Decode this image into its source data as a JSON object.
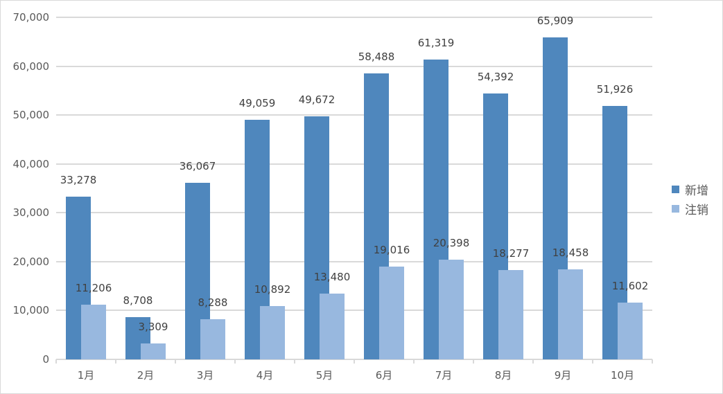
{
  "chart_data": {
    "type": "bar",
    "title": "",
    "xlabel": "",
    "ylabel": "",
    "categories": [
      "1月",
      "2月",
      "3月",
      "4月",
      "5月",
      "6月",
      "7月",
      "8月",
      "9月",
      "10月"
    ],
    "series": [
      {
        "name": "新增",
        "color": "#4f87bd",
        "values": [
          33278,
          8708,
          36067,
          49059,
          49672,
          58488,
          61319,
          54392,
          65909,
          51926
        ],
        "labels": [
          "33,278",
          "8,708",
          "36,067",
          "49,059",
          "49,672",
          "58,488",
          "61,319",
          "54,392",
          "65,909",
          "51,926"
        ]
      },
      {
        "name": "注销",
        "color": "#98b8df",
        "values": [
          11206,
          3309,
          8288,
          10892,
          13480,
          19016,
          20398,
          18277,
          18458,
          11602
        ],
        "labels": [
          "11,206",
          "3,309",
          "8,288",
          "10,892",
          "13,480",
          "19,016",
          "20,398",
          "18,277",
          "18,458",
          "11,602"
        ]
      }
    ],
    "ylim": [
      0,
      70000
    ],
    "yticks": [
      0,
      10000,
      20000,
      30000,
      40000,
      50000,
      60000,
      70000
    ],
    "ytick_labels": [
      "0",
      "10,000",
      "20,000",
      "30,000",
      "40,000",
      "50,000",
      "60,000",
      "70,000"
    ],
    "grid": true,
    "legend_position": "right",
    "data_labels": true
  },
  "legend": {
    "items": [
      {
        "label": "新增",
        "color": "#4f87bd"
      },
      {
        "label": "注销",
        "color": "#98b8df"
      }
    ]
  }
}
